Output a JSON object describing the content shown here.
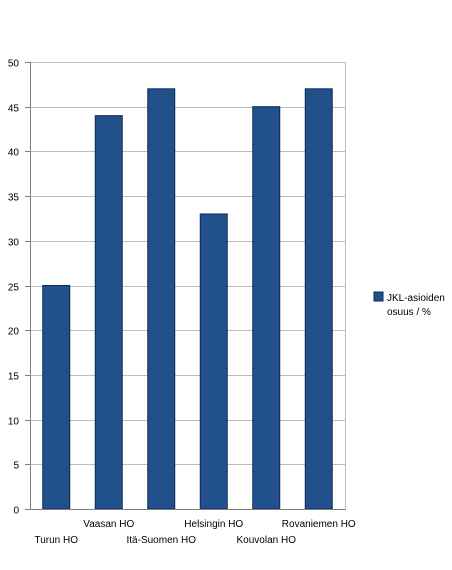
{
  "chart_data": {
    "type": "bar",
    "title": "",
    "xlabel": "",
    "ylabel": "",
    "categories": [
      "Turun HO",
      "Vaasan HO",
      "Itä-Suomen HO",
      "Helsingin HO",
      "Kouvolan HO",
      "Rovaniemen HO"
    ],
    "category_labels": [
      "Turun HO",
      "Vaasan  HO",
      "Itä-Suomen HO",
      "Helsingin HO",
      "Kouvolan  HO",
      "Rovaniemen HO"
    ],
    "series": [
      {
        "name": "JKL-asioiden osuus  / %",
        "values": [
          25,
          44,
          47,
          33,
          45,
          47
        ]
      }
    ],
    "legend": {
      "position": "right",
      "lines": [
        "JKL-asioiden",
        "osuus  / %"
      ]
    },
    "ylim": [
      0,
      50
    ],
    "yticks": [
      0,
      5,
      10,
      15,
      20,
      25,
      30,
      35,
      40,
      45,
      50
    ],
    "ytick_labels": [
      "0",
      "5",
      "10",
      "15",
      "20",
      "25",
      "30",
      "35",
      "40",
      "45",
      "50"
    ],
    "grid": true,
    "colors": {
      "bar": "#21508d",
      "bar_stroke": "#0e2a52",
      "grid": "#bdbdbd",
      "axis": "#808080"
    }
  }
}
